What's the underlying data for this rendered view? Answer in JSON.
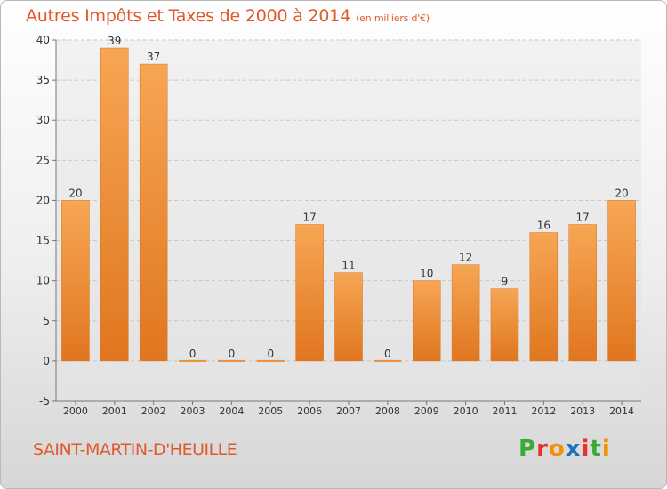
{
  "header": {
    "title": "Autres Impôts et Taxes de 2000 à 2014",
    "unit": "(en milliers d'€)"
  },
  "footer": {
    "commune": "SAINT-MARTIN-D'HEUILLE",
    "logo_letters": [
      "P",
      "r",
      "o",
      "x",
      "i",
      "t",
      "i"
    ],
    "logo_colors": [
      "#3aa935",
      "#e6332a",
      "#f39200",
      "#1d71b8",
      "#e6332a",
      "#3aa935",
      "#f39200"
    ]
  },
  "chart_data": {
    "type": "bar",
    "title": "Autres Impôts et Taxes de 2000 à 2014",
    "subtitle": "(en milliers d'€)",
    "categories": [
      "2000",
      "2001",
      "2002",
      "2003",
      "2004",
      "2005",
      "2006",
      "2007",
      "2008",
      "2009",
      "2010",
      "2011",
      "2012",
      "2013",
      "2014"
    ],
    "values": [
      20,
      39,
      37,
      0,
      0,
      0,
      17,
      11,
      0,
      10,
      12,
      9,
      16,
      17,
      20
    ],
    "value_labels": [
      "20",
      "39",
      "37",
      "0",
      "0",
      "0",
      "17",
      "11",
      "0",
      "10",
      "12",
      "9",
      "16",
      "17",
      "20"
    ],
    "yticks": [
      "-5",
      "0",
      "5",
      "10",
      "15",
      "20",
      "25",
      "30",
      "35",
      "40"
    ],
    "ylim": [
      -5,
      40
    ],
    "grid": true,
    "bar_color": "#f0913a"
  }
}
